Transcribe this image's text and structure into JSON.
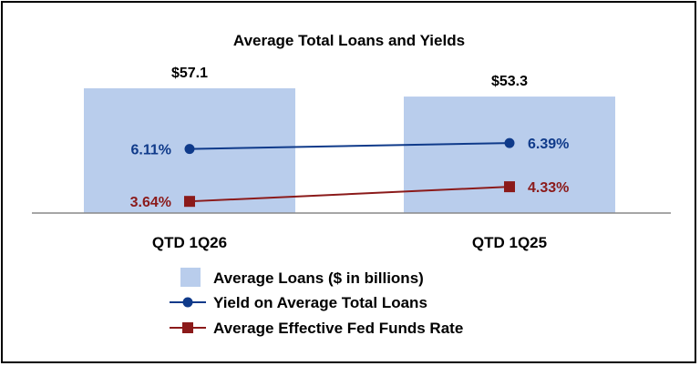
{
  "chart_data": {
    "type": "bar",
    "title": "Average Total Loans and Yields",
    "categories": [
      "QTD 1Q26",
      "QTD 1Q25"
    ],
    "bar_series": {
      "name": "Average Loans ($ in billions)",
      "values": [
        57.1,
        53.3
      ],
      "labels": [
        "$57.1",
        "$53.3"
      ],
      "color": "#b9cdec"
    },
    "line_series": [
      {
        "name": "Yield on Average Total Loans",
        "values": [
          6.11,
          6.39
        ],
        "labels": [
          "6.11%",
          "6.39%"
        ],
        "color": "#0f3a8a",
        "marker": "circle"
      },
      {
        "name": "Average Effective Fed Funds Rate",
        "values": [
          3.64,
          4.33
        ],
        "labels": [
          "3.64%",
          "4.33%"
        ],
        "color": "#8b1a1a",
        "marker": "square"
      }
    ],
    "legend_position": "bottom",
    "grid": false
  }
}
